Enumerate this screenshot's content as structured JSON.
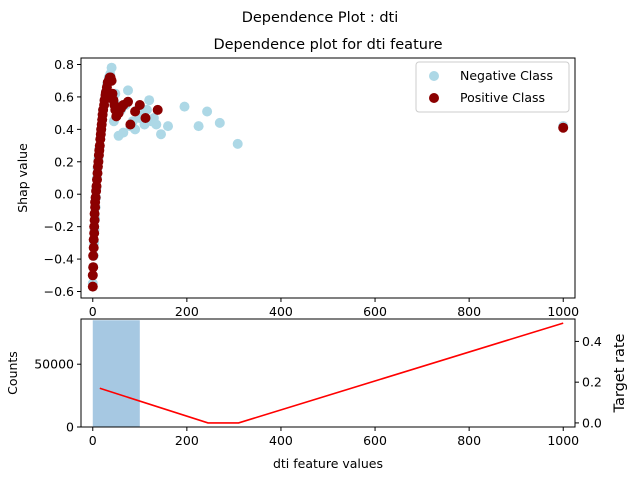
{
  "figure": {
    "suptitle": "Dependence Plot : dti"
  },
  "chart_data": [
    {
      "type": "scatter",
      "title": "Dependence plot for dti feature",
      "xlabel": "",
      "ylabel": "Shap value",
      "xlim": [
        -25,
        1025
      ],
      "ylim": [
        -0.64,
        0.84
      ],
      "xticks": [
        0,
        200,
        400,
        600,
        800,
        1000
      ],
      "yticks": [
        -0.6,
        -0.4,
        -0.2,
        0.0,
        0.2,
        0.4,
        0.6,
        0.8
      ],
      "ytick_labels": [
        "−0.6",
        "−0.4",
        "−0.2",
        "0.0",
        "0.2",
        "0.4",
        "0.6",
        "0.8"
      ],
      "grid": false,
      "legend_position": "top-right",
      "series": [
        {
          "name": "Negative Class",
          "color": "#add8e6",
          "points": [
            [
              0,
              -0.55
            ],
            [
              1,
              -0.45
            ],
            [
              2,
              -0.38
            ],
            [
              3,
              -0.3
            ],
            [
              4,
              -0.22
            ],
            [
              5,
              -0.15
            ],
            [
              6,
              -0.08
            ],
            [
              7,
              -0.02
            ],
            [
              8,
              0.04
            ],
            [
              9,
              0.1
            ],
            [
              10,
              0.16
            ],
            [
              12,
              0.22
            ],
            [
              14,
              0.28
            ],
            [
              16,
              0.34
            ],
            [
              18,
              0.4
            ],
            [
              20,
              0.46
            ],
            [
              22,
              0.52
            ],
            [
              25,
              0.58
            ],
            [
              28,
              0.63
            ],
            [
              31,
              0.68
            ],
            [
              34,
              0.72
            ],
            [
              37,
              0.74
            ],
            [
              40,
              0.78
            ],
            [
              45,
              0.45
            ],
            [
              48,
              0.62
            ],
            [
              50,
              0.55
            ],
            [
              55,
              0.36
            ],
            [
              60,
              0.52
            ],
            [
              65,
              0.38
            ],
            [
              70,
              0.55
            ],
            [
              75,
              0.64
            ],
            [
              80,
              0.42
            ],
            [
              85,
              0.45
            ],
            [
              90,
              0.4
            ],
            [
              95,
              0.52
            ],
            [
              100,
              0.47
            ],
            [
              105,
              0.5
            ],
            [
              110,
              0.43
            ],
            [
              115,
              0.52
            ],
            [
              120,
              0.58
            ],
            [
              125,
              0.45
            ],
            [
              130,
              0.47
            ],
            [
              135,
              0.43
            ],
            [
              145,
              0.37
            ],
            [
              160,
              0.42
            ],
            [
              195,
              0.54
            ],
            [
              225,
              0.42
            ],
            [
              243,
              0.51
            ],
            [
              270,
              0.44
            ],
            [
              308,
              0.31
            ],
            [
              1000,
              0.42
            ]
          ]
        },
        {
          "name": "Positive Class",
          "color": "#8b0000",
          "points": [
            [
              0,
              -0.57
            ],
            [
              0,
              -0.5
            ],
            [
              1,
              -0.45
            ],
            [
              1,
              -0.38
            ],
            [
              2,
              -0.33
            ],
            [
              2,
              -0.28
            ],
            [
              3,
              -0.24
            ],
            [
              3,
              -0.2
            ],
            [
              4,
              -0.16
            ],
            [
              4,
              -0.12
            ],
            [
              5,
              -0.08
            ],
            [
              5,
              -0.05
            ],
            [
              6,
              -0.02
            ],
            [
              7,
              0.02
            ],
            [
              8,
              0.05
            ],
            [
              9,
              0.09
            ],
            [
              10,
              0.13
            ],
            [
              11,
              0.17
            ],
            [
              12,
              0.2
            ],
            [
              13,
              0.24
            ],
            [
              14,
              0.27
            ],
            [
              15,
              0.3
            ],
            [
              16,
              0.34
            ],
            [
              17,
              0.37
            ],
            [
              18,
              0.4
            ],
            [
              19,
              0.43
            ],
            [
              20,
              0.46
            ],
            [
              21,
              0.49
            ],
            [
              22,
              0.52
            ],
            [
              24,
              0.55
            ],
            [
              25,
              0.58
            ],
            [
              27,
              0.61
            ],
            [
              28,
              0.63
            ],
            [
              30,
              0.66
            ],
            [
              32,
              0.69
            ],
            [
              34,
              0.7
            ],
            [
              36,
              0.72
            ],
            [
              38,
              0.72
            ],
            [
              40,
              0.7
            ],
            [
              42,
              0.62
            ],
            [
              44,
              0.58
            ],
            [
              46,
              0.55
            ],
            [
              48,
              0.52
            ],
            [
              50,
              0.48
            ],
            [
              55,
              0.5
            ],
            [
              60,
              0.53
            ],
            [
              65,
              0.55
            ],
            [
              75,
              0.57
            ],
            [
              80,
              0.43
            ],
            [
              90,
              0.51
            ],
            [
              100,
              0.55
            ],
            [
              112,
              0.47
            ],
            [
              138,
              0.52
            ],
            [
              1000,
              0.41
            ]
          ]
        }
      ]
    },
    {
      "type": "bar",
      "xlabel": "dti feature values",
      "ylabel": "Counts",
      "xlim": [
        -25,
        1025
      ],
      "ylim": [
        0,
        86000
      ],
      "xticks": [
        0,
        200,
        400,
        600,
        800,
        1000
      ],
      "yticks": [
        0,
        50000
      ],
      "bars": [
        {
          "x0": 0,
          "x1": 100,
          "value": 85000,
          "color": "#a6c8e2"
        }
      ]
    },
    {
      "type": "line",
      "ylabel": "Target rate",
      "ylabel_color": "#ff0000",
      "ylim": [
        -0.02,
        0.51
      ],
      "yticks": [
        0.0,
        0.2,
        0.4
      ],
      "series": [
        {
          "color": "#ff0000",
          "x": [
            15,
            245,
            310,
            1000
          ],
          "y": [
            0.17,
            0.0,
            0.0,
            0.49
          ]
        }
      ]
    }
  ]
}
